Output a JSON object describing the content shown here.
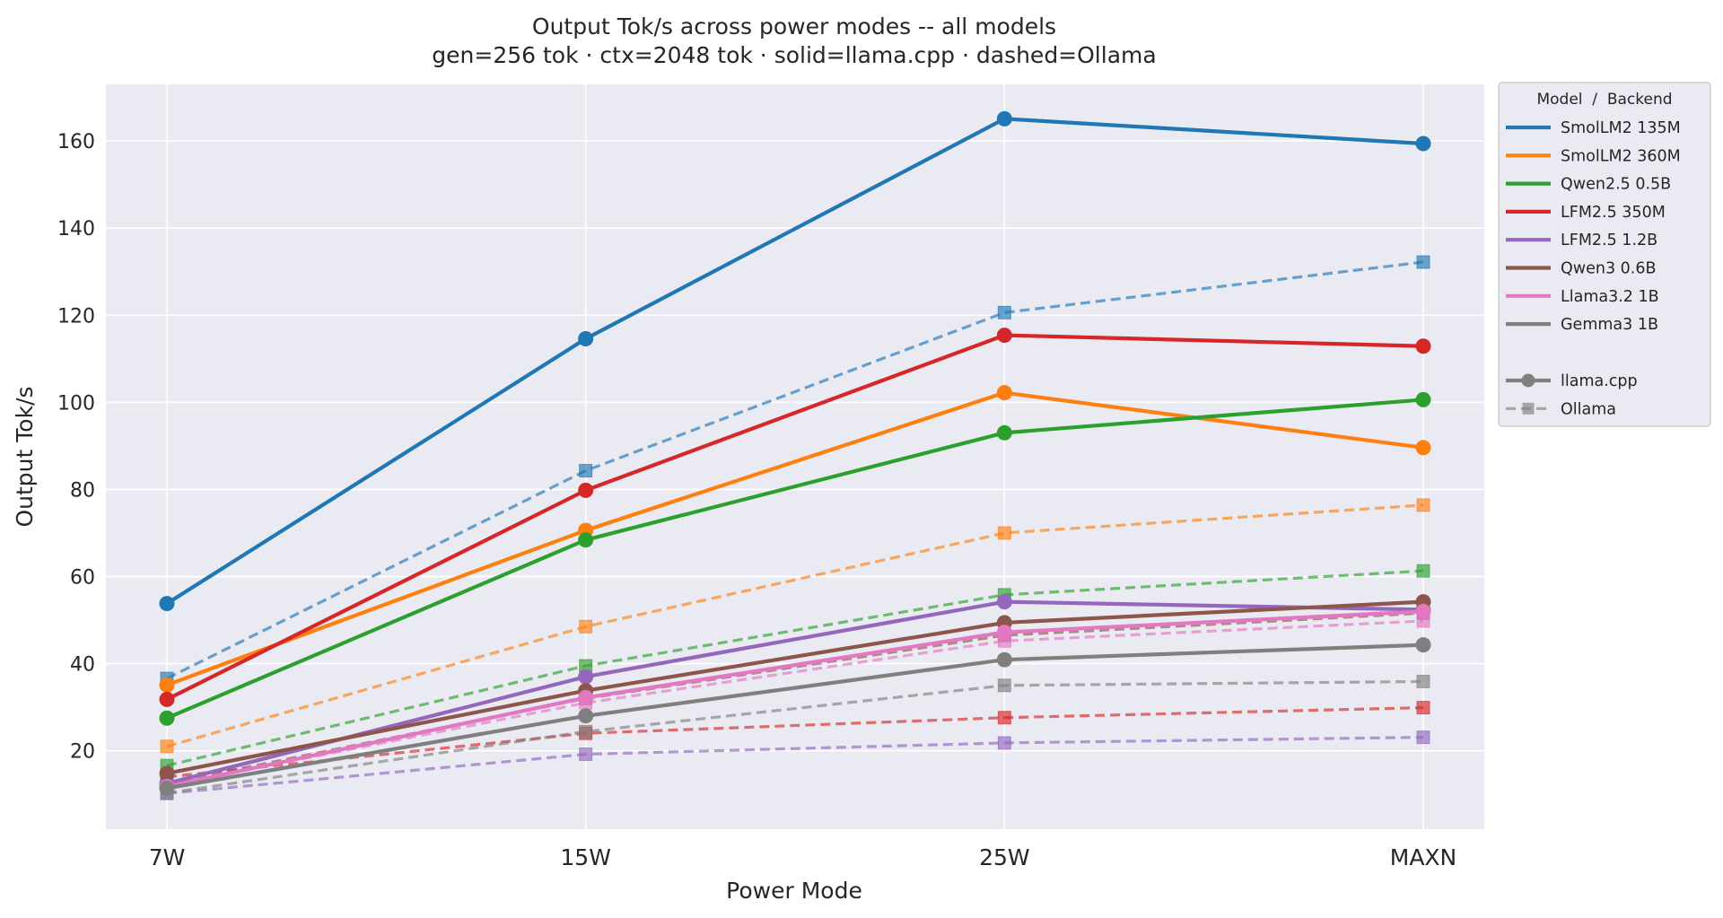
{
  "chart_data": {
    "type": "line",
    "title": "Output Tok/s across power modes -- all models",
    "subtitle": "gen=256 tok · ctx=2048 tok · solid=llama.cpp · dashed=Ollama",
    "xlabel": "Power Mode",
    "ylabel": "Output Tok/s",
    "categories": [
      "7W",
      "15W",
      "25W",
      "MAXN"
    ],
    "ylim": [
      2,
      173
    ],
    "yticks": [
      20,
      40,
      60,
      80,
      100,
      120,
      140,
      160
    ],
    "grid": true,
    "legend_placement": "outside-top-right",
    "legend_title": "Model  /  Backend",
    "backend_legend": [
      {
        "name": "llama.cpp",
        "style": "solid",
        "marker": "circle"
      },
      {
        "name": "Ollama",
        "style": "dashed",
        "marker": "square"
      }
    ],
    "series": [
      {
        "model": "SmolLM2 135M",
        "color": "#1f77b4",
        "llama_cpp": [
          53.8,
          114.6,
          165.1,
          159.4
        ],
        "ollama": [
          36.6,
          84.3,
          120.6,
          132.2
        ]
      },
      {
        "model": "SmolLM2 360M",
        "color": "#ff7f0e",
        "llama_cpp": [
          35.1,
          70.6,
          102.2,
          89.6
        ],
        "ollama": [
          21.0,
          48.5,
          70.0,
          76.4
        ]
      },
      {
        "model": "Qwen2.5 0.5B",
        "color": "#2ca02c",
        "llama_cpp": [
          27.5,
          68.4,
          93.0,
          100.6
        ],
        "ollama": [
          16.6,
          39.5,
          55.8,
          61.3
        ]
      },
      {
        "model": "LFM2.5 350M",
        "color": "#d62728",
        "llama_cpp": [
          31.8,
          79.8,
          115.4,
          112.9
        ],
        "ollama": [
          14.0,
          24.0,
          27.6,
          29.9
        ]
      },
      {
        "model": "LFM2.5 1.2B",
        "color": "#9467bd",
        "llama_cpp": [
          12.5,
          37.0,
          54.2,
          52.4
        ],
        "ollama": [
          10.2,
          19.2,
          21.8,
          23.1
        ]
      },
      {
        "model": "Qwen3 0.6B",
        "color": "#8c564b",
        "llama_cpp": [
          14.8,
          33.8,
          49.4,
          54.2
        ],
        "ollama": [
          12.5,
          32.0,
          46.5,
          51.6
        ]
      },
      {
        "model": "Llama3.2 1B",
        "color": "#e377c2",
        "llama_cpp": [
          11.8,
          32.2,
          47.2,
          52.0
        ],
        "ollama": [
          12.0,
          31.0,
          45.2,
          49.8
        ]
      },
      {
        "model": "Gemma3 1B",
        "color": "#7f7f7f",
        "llama_cpp": [
          11.4,
          28.0,
          40.9,
          44.3
        ],
        "ollama": [
          10.3,
          24.4,
          35.0,
          35.9
        ]
      }
    ]
  }
}
